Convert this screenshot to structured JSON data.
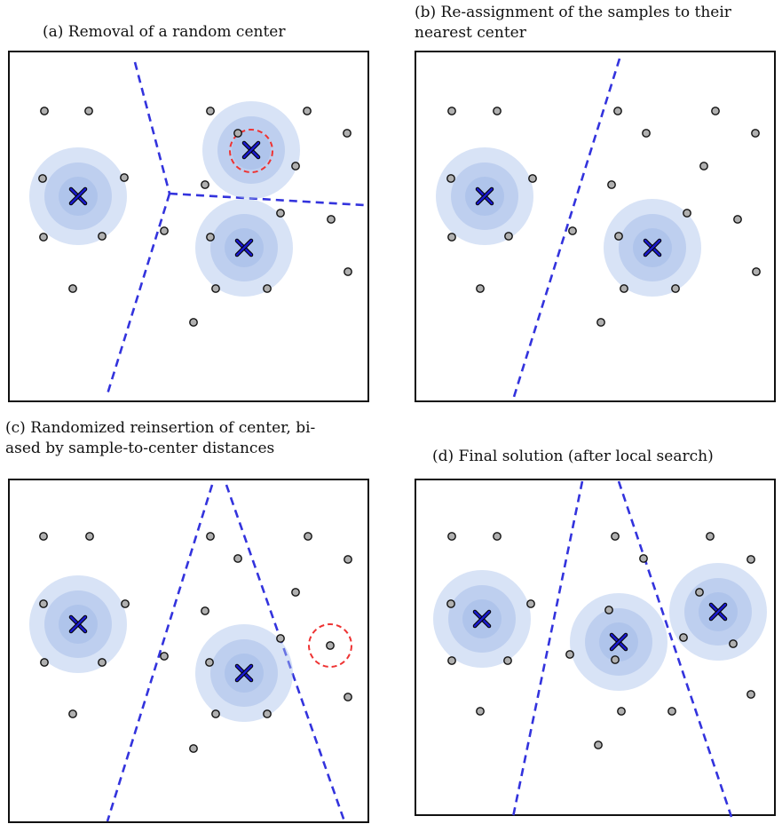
{
  "panels": {
    "a": {
      "caption": "(a) Removal of a random center"
    },
    "b": {
      "caption_lines": [
        "(b) Re-assignment of the samples to their",
        "nearest center"
      ]
    },
    "c": {
      "caption_lines": [
        "(c) Randomized reinsertion of center, bi-",
        "ased by sample-to-center distances"
      ]
    },
    "d": {
      "caption": "(d) Final solution (after local search)"
    }
  },
  "colors": {
    "boundary": "#3333dd",
    "center_marker": "#1a1acc",
    "halo": "#a9c0ea",
    "sample_fill": "#b0b0b0",
    "highlight": "#ee3333"
  },
  "icons": {
    "center": "x-cross-icon",
    "sample": "circle-dot-icon",
    "highlight": "dashed-circle-icon"
  }
}
